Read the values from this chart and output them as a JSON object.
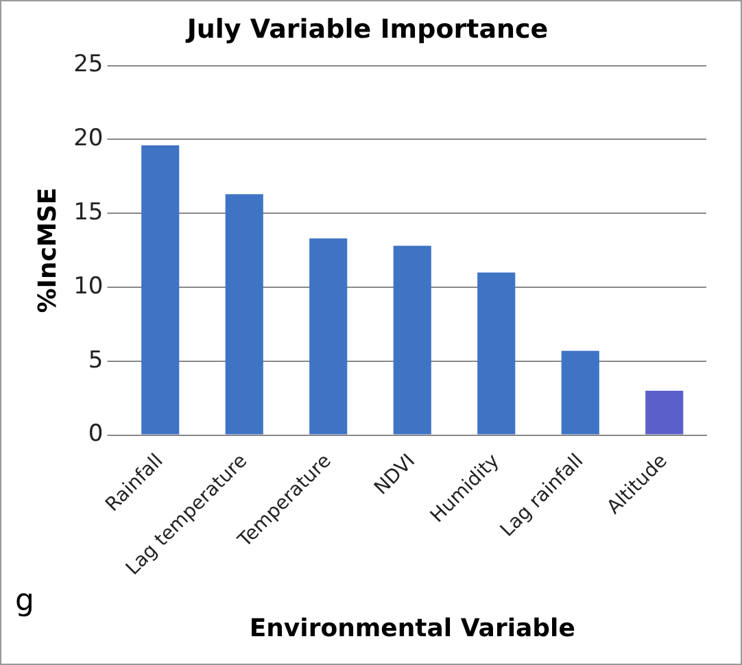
{
  "chart_data": {
    "type": "bar",
    "title": "July Variable Importance",
    "xlabel": "Environmental Variable",
    "ylabel": "%IncMSE",
    "categories": [
      "Rainfall",
      "Lag temperature",
      "Temperature",
      "NDVI",
      "Humidity",
      "Lag rainfall",
      "Altitude"
    ],
    "values": [
      19.6,
      16.3,
      13.3,
      12.8,
      11.0,
      5.7,
      3.0
    ],
    "colors": [
      "#3f73c4",
      "#3f73c4",
      "#3f73c4",
      "#3f73c4",
      "#3f73c4",
      "#3f73c4",
      "#5b5fc9"
    ],
    "ylim": [
      0,
      25
    ],
    "yticks": [
      0,
      5,
      10,
      15,
      20,
      25
    ],
    "grid": "y",
    "legend": false,
    "annotations": [
      "g"
    ]
  }
}
